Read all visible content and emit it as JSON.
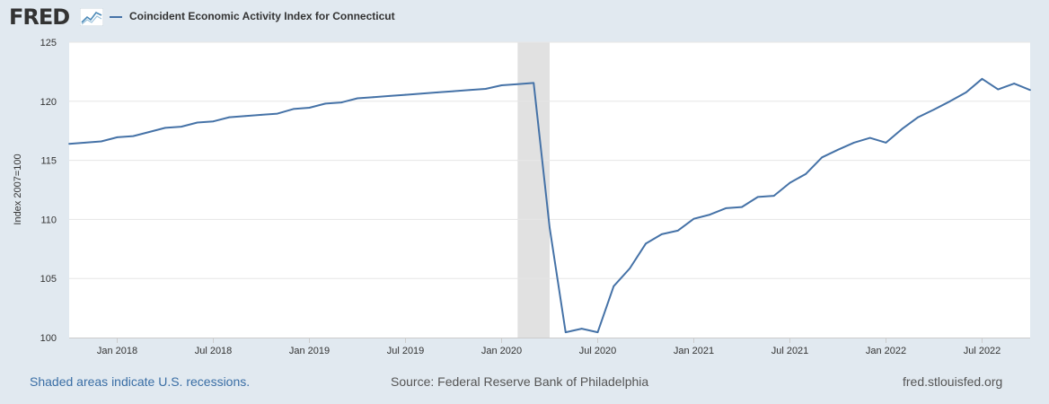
{
  "header": {
    "logo_text": "FRED",
    "logo_icon": "line-graph-icon",
    "legend_label": "Coincident Economic Activity Index for Connecticut"
  },
  "footer": {
    "recession_note": "Shaded areas indicate U.S. recessions.",
    "source": "Source: Federal Reserve Bank of Philadelphia",
    "site": "fred.stlouisfed.org"
  },
  "colors": {
    "series": "#4572a7",
    "recession_band": "#e1e1e1",
    "page_background": "#e1e9f0",
    "plot_background": "#ffffff",
    "gridline": "#e6e6e6"
  },
  "chart_data": {
    "type": "line",
    "ylabel": "Index 2007=100",
    "ylim": [
      100,
      125
    ],
    "xlim": [
      "2017-10",
      "2022-10"
    ],
    "yticks": [
      100,
      105,
      110,
      115,
      120,
      125
    ],
    "xticks": [
      "Jan 2018",
      "Jul 2018",
      "Jan 2019",
      "Jul 2019",
      "Jan 2020",
      "Jul 2020",
      "Jan 2021",
      "Jul 2021",
      "Jan 2022",
      "Jul 2022"
    ],
    "grid": true,
    "legend": "top-left",
    "recessions": [
      {
        "start": "2020-02",
        "end": "2020-04"
      }
    ],
    "series": [
      {
        "name": "Coincident Economic Activity Index for Connecticut",
        "x": [
          "2017-10",
          "2017-11",
          "2017-12",
          "2018-01",
          "2018-02",
          "2018-03",
          "2018-04",
          "2018-05",
          "2018-06",
          "2018-07",
          "2018-08",
          "2018-09",
          "2018-10",
          "2018-11",
          "2018-12",
          "2019-01",
          "2019-02",
          "2019-03",
          "2019-04",
          "2019-05",
          "2019-06",
          "2019-07",
          "2019-08",
          "2019-09",
          "2019-10",
          "2019-11",
          "2019-12",
          "2020-01",
          "2020-02",
          "2020-03",
          "2020-04",
          "2020-05",
          "2020-06",
          "2020-07",
          "2020-08",
          "2020-09",
          "2020-10",
          "2020-11",
          "2020-12",
          "2021-01",
          "2021-02",
          "2021-03",
          "2021-04",
          "2021-05",
          "2021-06",
          "2021-07",
          "2021-08",
          "2021-09",
          "2021-10",
          "2021-11",
          "2021-12",
          "2022-01",
          "2022-02",
          "2022-03",
          "2022-04",
          "2022-05",
          "2022-06",
          "2022-07",
          "2022-08",
          "2022-09",
          "2022-10"
        ],
        "values": [
          116.4,
          116.5,
          116.6,
          116.95,
          117.05,
          117.4,
          117.75,
          117.85,
          118.2,
          118.3,
          118.65,
          118.75,
          118.85,
          118.95,
          119.35,
          119.45,
          119.8,
          119.9,
          120.25,
          120.35,
          120.45,
          120.55,
          120.65,
          120.75,
          120.85,
          120.95,
          121.05,
          121.35,
          121.45,
          121.55,
          109.3,
          100.45,
          100.75,
          100.45,
          104.35,
          105.85,
          107.95,
          108.75,
          109.05,
          110.05,
          110.4,
          110.95,
          111.05,
          111.9,
          112.0,
          113.1,
          113.85,
          115.25,
          115.9,
          116.5,
          116.9,
          116.5,
          117.65,
          118.65,
          119.3,
          120.0,
          120.75,
          121.9,
          121.0,
          121.5,
          120.95
        ]
      }
    ]
  }
}
